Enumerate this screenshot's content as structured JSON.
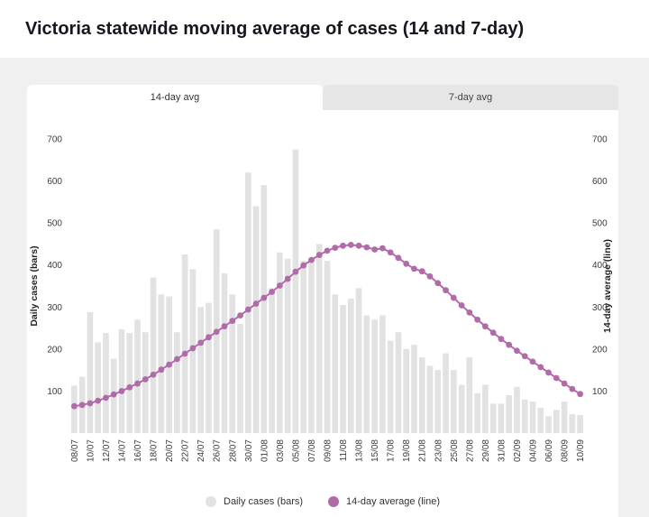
{
  "header": {
    "title": "Victoria statewide moving average of cases (14 and 7-day)"
  },
  "tabs": [
    {
      "label": "14-day avg",
      "active": true
    },
    {
      "label": "7-day avg",
      "active": false
    }
  ],
  "chart_data": {
    "type": "bar",
    "title": "Victoria statewide moving average of cases (14 and 7-day)",
    "xlabel": "",
    "ylabel_left": "Daily cases (bars)",
    "ylabel_right": "14-day average (line)",
    "ylim": [
      0,
      700
    ],
    "yticks": [
      100,
      200,
      300,
      400,
      500,
      600,
      700
    ],
    "x_tick_every": 2,
    "grid": false,
    "legend_position": "bottom",
    "categories": [
      "08/07",
      "09/07",
      "10/07",
      "11/07",
      "12/07",
      "13/07",
      "14/07",
      "15/07",
      "16/07",
      "17/07",
      "18/07",
      "19/07",
      "20/07",
      "21/07",
      "22/07",
      "23/07",
      "24/07",
      "25/07",
      "26/07",
      "27/07",
      "28/07",
      "29/07",
      "30/07",
      "31/07",
      "01/08",
      "02/08",
      "03/08",
      "04/08",
      "05/08",
      "06/08",
      "07/08",
      "08/08",
      "09/08",
      "10/08",
      "11/08",
      "12/08",
      "13/08",
      "14/08",
      "15/08",
      "16/08",
      "17/08",
      "18/08",
      "19/08",
      "20/08",
      "21/08",
      "22/08",
      "23/08",
      "24/08",
      "25/08",
      "26/08",
      "27/08",
      "28/08",
      "29/08",
      "30/08",
      "31/08",
      "01/09",
      "02/09",
      "03/09",
      "04/09",
      "05/09",
      "06/09",
      "07/09",
      "08/09",
      "09/09",
      "10/09"
    ],
    "series": [
      {
        "name": "Daily cases (bars)",
        "type": "bar",
        "color": "#e2e2e2",
        "values": [
          113,
          134,
          288,
          216,
          238,
          177,
          247,
          238,
          270,
          240,
          370,
          330,
          325,
          240,
          425,
          390,
          300,
          310,
          485,
          380,
          330,
          260,
          620,
          540,
          590,
          345,
          430,
          415,
          675,
          410,
          415,
          450,
          410,
          330,
          305,
          320,
          345,
          280,
          270,
          280,
          220,
          240,
          200,
          210,
          180,
          160,
          150,
          190,
          150,
          115,
          180,
          95,
          115,
          70,
          70,
          90,
          110,
          80,
          75,
          60,
          40,
          55,
          75,
          45,
          43
        ]
      },
      {
        "name": "14-day average (line)",
        "type": "line",
        "color": "#b26ba9",
        "values": [
          64,
          67,
          71,
          77,
          84,
          92,
          100,
          109,
          118,
          128,
          139,
          151,
          163,
          176,
          189,
          202,
          215,
          228,
          241,
          254,
          267,
          280,
          294,
          308,
          322,
          336,
          351,
          367,
          384,
          399,
          412,
          424,
          434,
          441,
          446,
          448,
          446,
          442,
          437,
          440,
          430,
          417,
          403,
          391,
          385,
          373,
          357,
          340,
          322,
          304,
          287,
          270,
          254,
          239,
          224,
          210,
          196,
          183,
          170,
          157,
          144,
          131,
          118,
          105,
          93
        ]
      }
    ]
  },
  "legend": {
    "items": [
      {
        "label": "Daily cases (bars)",
        "color": "#e2e2e2"
      },
      {
        "label": "14-day average (line)",
        "color": "#b26ba9"
      }
    ]
  }
}
